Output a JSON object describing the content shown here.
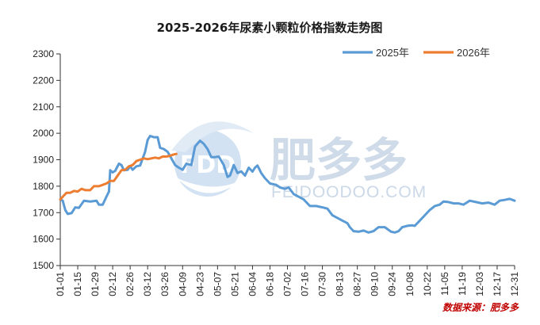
{
  "chart_data": {
    "type": "line",
    "title": "2025-2026年尿素小颗粒价格指数走势图",
    "xlabel": "",
    "ylabel": "",
    "ylim": [
      1500,
      2300
    ],
    "yticks": [
      1500,
      1600,
      1700,
      1800,
      1900,
      2000,
      2100,
      2200,
      2300
    ],
    "xlim": [
      "01-01",
      "12-31"
    ],
    "xticks": [
      "01-01",
      "01-15",
      "01-29",
      "02-12",
      "02-26",
      "03-12",
      "03-26",
      "04-09",
      "04-23",
      "05-07",
      "05-21",
      "06-04",
      "06-18",
      "07-02",
      "07-16",
      "07-30",
      "08-13",
      "08-27",
      "09-10",
      "09-24",
      "10-08",
      "10-22",
      "11-05",
      "11-19",
      "12-03",
      "12-17",
      "12-31"
    ],
    "grid": false,
    "legend_position": "top-right",
    "series": [
      {
        "name": "2025年",
        "color": "#5b9bd5",
        "points": [
          [
            "01-01",
            1750
          ],
          [
            "01-03",
            1745
          ],
          [
            "01-05",
            1710
          ],
          [
            "01-07",
            1695
          ],
          [
            "01-10",
            1698
          ],
          [
            "01-13",
            1720
          ],
          [
            "01-16",
            1718
          ],
          [
            "01-20",
            1745
          ],
          [
            "01-25",
            1742
          ],
          [
            "01-30",
            1745
          ],
          [
            "02-01",
            1730
          ],
          [
            "02-04",
            1730
          ],
          [
            "02-07",
            1760
          ],
          [
            "02-09",
            1780
          ],
          [
            "02-10",
            1860
          ],
          [
            "02-12",
            1852
          ],
          [
            "02-14",
            1858
          ],
          [
            "02-17",
            1885
          ],
          [
            "02-19",
            1880
          ],
          [
            "02-21",
            1860
          ],
          [
            "02-24",
            1862
          ],
          [
            "02-26",
            1875
          ],
          [
            "02-28",
            1862
          ],
          [
            "03-03",
            1875
          ],
          [
            "03-06",
            1878
          ],
          [
            "03-10",
            1930
          ],
          [
            "03-12",
            1975
          ],
          [
            "03-14",
            1990
          ],
          [
            "03-17",
            1985
          ],
          [
            "03-20",
            1985
          ],
          [
            "03-22",
            1945
          ],
          [
            "03-25",
            1940
          ],
          [
            "03-28",
            1930
          ],
          [
            "03-31",
            1905
          ],
          [
            "04-03",
            1880
          ],
          [
            "04-06",
            1870
          ],
          [
            "04-09",
            1862
          ],
          [
            "04-12",
            1885
          ],
          [
            "04-16",
            1880
          ],
          [
            "04-19",
            1950
          ],
          [
            "04-23",
            1972
          ],
          [
            "04-26",
            1960
          ],
          [
            "04-29",
            1940
          ],
          [
            "05-02",
            1910
          ],
          [
            "05-05",
            1910
          ],
          [
            "05-08",
            1912
          ],
          [
            "05-12",
            1880
          ],
          [
            "05-15",
            1835
          ],
          [
            "05-17",
            1840
          ],
          [
            "05-20",
            1880
          ],
          [
            "05-23",
            1850
          ],
          [
            "05-26",
            1856
          ],
          [
            "05-29",
            1840
          ],
          [
            "06-01",
            1870
          ],
          [
            "06-04",
            1855
          ],
          [
            "06-06",
            1870
          ],
          [
            "06-08",
            1878
          ],
          [
            "06-11",
            1850
          ],
          [
            "06-14",
            1830
          ],
          [
            "06-18",
            1810
          ],
          [
            "06-23",
            1805
          ],
          [
            "06-26",
            1795
          ],
          [
            "06-30",
            1790
          ],
          [
            "07-03",
            1795
          ],
          [
            "07-07",
            1770
          ],
          [
            "07-11",
            1760
          ],
          [
            "07-15",
            1750
          ],
          [
            "07-20",
            1725
          ],
          [
            "07-25",
            1725
          ],
          [
            "07-30",
            1720
          ],
          [
            "08-03",
            1715
          ],
          [
            "08-07",
            1690
          ],
          [
            "08-11",
            1680
          ],
          [
            "08-15",
            1670
          ],
          [
            "08-19",
            1660
          ],
          [
            "08-21",
            1645
          ],
          [
            "08-24",
            1630
          ],
          [
            "08-28",
            1628
          ],
          [
            "09-01",
            1632
          ],
          [
            "09-05",
            1625
          ],
          [
            "09-09",
            1630
          ],
          [
            "09-13",
            1645
          ],
          [
            "09-18",
            1645
          ],
          [
            "09-23",
            1628
          ],
          [
            "09-26",
            1625
          ],
          [
            "09-29",
            1630
          ],
          [
            "10-02",
            1645
          ],
          [
            "10-06",
            1650
          ],
          [
            "10-10",
            1652
          ],
          [
            "10-12",
            1650
          ],
          [
            "10-16",
            1670
          ],
          [
            "10-20",
            1690
          ],
          [
            "10-24",
            1710
          ],
          [
            "10-28",
            1725
          ],
          [
            "11-01",
            1730
          ],
          [
            "11-04",
            1742
          ],
          [
            "11-08",
            1740
          ],
          [
            "11-12",
            1735
          ],
          [
            "11-16",
            1735
          ],
          [
            "11-20",
            1730
          ],
          [
            "11-25",
            1745
          ],
          [
            "11-30",
            1740
          ],
          [
            "12-05",
            1735
          ],
          [
            "12-10",
            1738
          ],
          [
            "12-15",
            1730
          ],
          [
            "12-19",
            1745
          ],
          [
            "12-23",
            1748
          ],
          [
            "12-27",
            1752
          ],
          [
            "12-31",
            1745
          ]
        ]
      },
      {
        "name": "2026年",
        "color": "#ed7d31",
        "points": [
          [
            "01-01",
            1750
          ],
          [
            "01-03",
            1760
          ],
          [
            "01-06",
            1775
          ],
          [
            "01-09",
            1775
          ],
          [
            "01-12",
            1782
          ],
          [
            "01-15",
            1780
          ],
          [
            "01-18",
            1790
          ],
          [
            "01-21",
            1785
          ],
          [
            "01-25",
            1785
          ],
          [
            "01-28",
            1800
          ],
          [
            "02-01",
            1800
          ],
          [
            "02-04",
            1805
          ],
          [
            "02-07",
            1810
          ],
          [
            "02-10",
            1820
          ],
          [
            "02-13",
            1820
          ],
          [
            "02-16",
            1840
          ],
          [
            "02-19",
            1860
          ],
          [
            "02-22",
            1862
          ],
          [
            "02-25",
            1875
          ],
          [
            "02-28",
            1880
          ],
          [
            "03-03",
            1895
          ],
          [
            "03-06",
            1900
          ],
          [
            "03-09",
            1905
          ],
          [
            "03-12",
            1902
          ],
          [
            "03-15",
            1905
          ],
          [
            "03-18",
            1908
          ],
          [
            "03-21",
            1905
          ],
          [
            "03-24",
            1912
          ],
          [
            "03-27",
            1912
          ],
          [
            "03-30",
            1915
          ],
          [
            "04-02",
            1920
          ],
          [
            "04-04",
            1922
          ]
        ]
      }
    ],
    "source_label": "数据来源：肥多多",
    "watermark": {
      "brand_text": "肥多多",
      "badge_text": "FDD",
      "url_text": "FEIDOODOO.COM"
    },
    "colors": {
      "axis": "#333333",
      "watermark": "#a9bfd8",
      "source": "#c00000"
    }
  }
}
